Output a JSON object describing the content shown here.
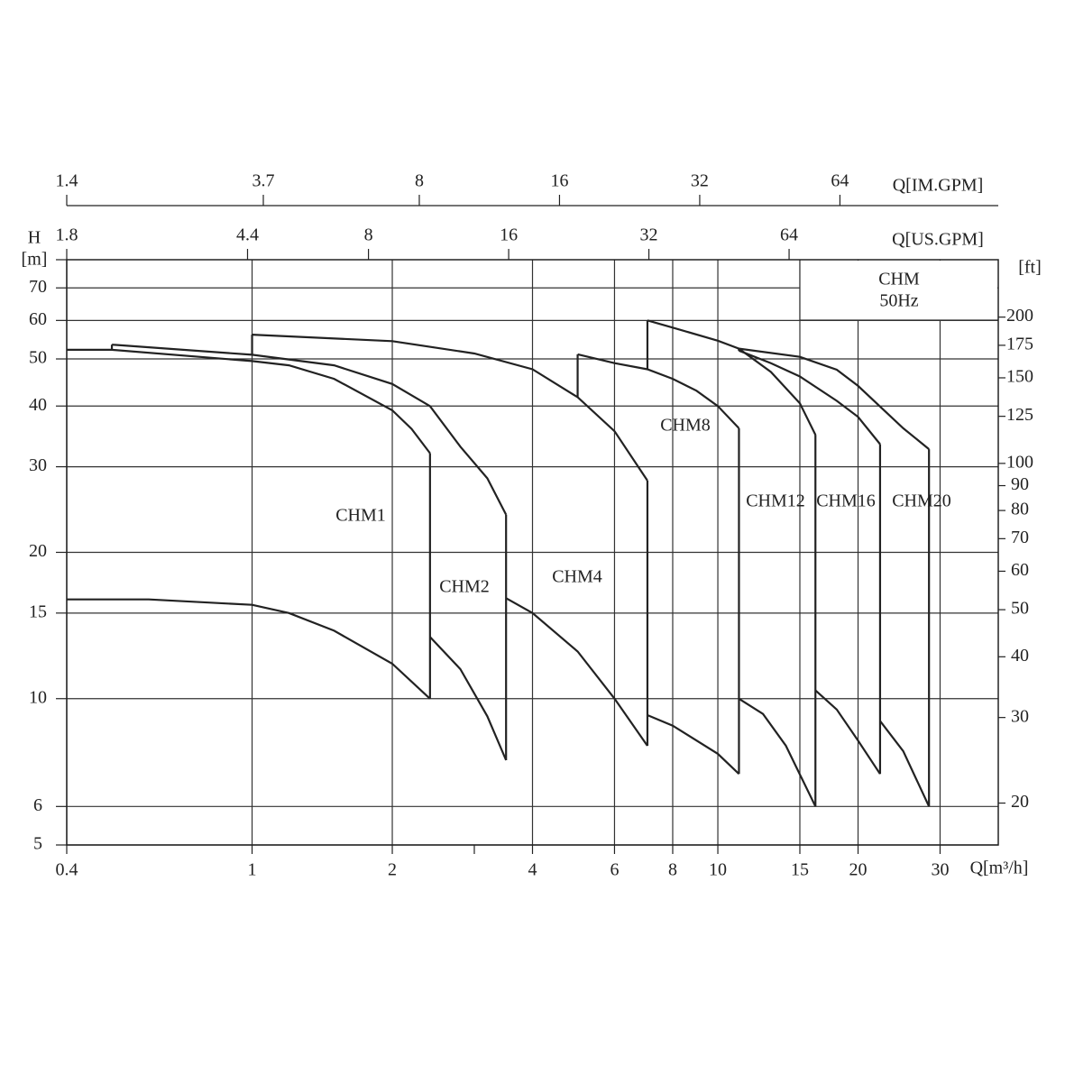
{
  "chart_data": {
    "type": "line",
    "log_scale": {
      "x": true,
      "y": true
    },
    "xlabel": "Q[m³/h]",
    "ylabel": "H",
    "yunit": "[m]",
    "y2unit": "[ft]",
    "annotation": [
      "CHM",
      "50Hz"
    ],
    "xlim": [
      0.4,
      40
    ],
    "xticks": [
      0.4,
      1,
      2,
      4,
      6,
      8,
      10,
      15,
      20,
      30
    ],
    "xminorticks": [
      3
    ],
    "ylim": [
      5,
      80
    ],
    "yticks": [
      5,
      6,
      10,
      15,
      20,
      30,
      40,
      50,
      60,
      70
    ],
    "y2lim": [
      16.4,
      262.5
    ],
    "y2ticks": [
      20,
      30,
      40,
      50,
      60,
      70,
      80,
      90,
      100,
      125,
      150,
      175,
      200
    ],
    "top_axes": [
      {
        "label": "Q[IM.GPM]",
        "lim": [
          1.4,
          140
        ],
        "ticks": [
          1.4,
          3.7,
          8,
          16,
          32,
          64
        ]
      },
      {
        "label": "Q[US.GPM]",
        "lim": [
          1.8,
          180
        ],
        "ticks": [
          1.8,
          4.4,
          8,
          16,
          32,
          64
        ]
      }
    ],
    "grid": true,
    "color": "#222222",
    "series": [
      {
        "name": "CHM1",
        "curves": [
          {
            "x": [
              0.4,
              0.5,
              1,
              1.2,
              1.5,
              2,
              2.2,
              2.41
            ],
            "values": [
              52.2,
              52.2,
              49.5,
              48.5,
              45.5,
              39.2,
              35.9,
              32
            ]
          },
          {
            "x": [
              0.4,
              0.6,
              1,
              1.2,
              1.5,
              2,
              2.41
            ],
            "values": [
              16,
              16,
              15.6,
              15,
              13.8,
              11.8,
              10
            ]
          }
        ]
      },
      {
        "name": "CHM2",
        "curves": [
          {
            "x": [
              0.5,
              1,
              1.5,
              2,
              2.41,
              2.8,
              3.2,
              3.51
            ],
            "values": [
              53.5,
              51,
              48.5,
              44.4,
              40,
              33,
              28.4,
              23.9
            ]
          },
          {
            "x": [
              2.41,
              2.8,
              3.2,
              3.51
            ],
            "values": [
              13.4,
              11.5,
              9.2,
              7.47
            ]
          }
        ]
      },
      {
        "name": "CHM4",
        "curves": [
          {
            "x": [
              1,
              2,
              3,
              4,
              5,
              6,
              7.06
            ],
            "values": [
              56.1,
              54.4,
              51.3,
              47.6,
              41.7,
              35.5,
              28.1
            ]
          },
          {
            "x": [
              3.51,
              4,
              5,
              6,
              7.06
            ],
            "values": [
              16.1,
              15,
              12.5,
              10,
              8
            ]
          }
        ]
      },
      {
        "name": "CHM8",
        "curves": [
          {
            "x": [
              5,
              6,
              7.06,
              8,
              9,
              10,
              11.1
            ],
            "values": [
              51.1,
              49,
              47.6,
              45.5,
              43,
              40,
              36
            ]
          },
          {
            "x": [
              7.06,
              8,
              10,
              11.1
            ],
            "values": [
              9.25,
              8.8,
              7.7,
              7
            ]
          }
        ]
      },
      {
        "name": "CHM12",
        "curves": [
          {
            "x": [
              7.06,
              8,
              10,
              11.1,
              13,
              15,
              16.2
            ],
            "values": [
              60,
              58,
              54.5,
              52.5,
              47,
              40.5,
              34.9
            ]
          },
          {
            "x": [
              11.1,
              12.5,
              14,
              16.2
            ],
            "values": [
              10,
              9.3,
              8,
              6
            ]
          }
        ]
      },
      {
        "name": "CHM16",
        "curves": [
          {
            "x": [
              11.1,
              13,
              15,
              18,
              20,
              22.3
            ],
            "values": [
              52,
              49,
              46,
              41,
              38,
              33.4
            ]
          },
          {
            "x": [
              16.2,
              18,
              20,
              22.3
            ],
            "values": [
              10.4,
              9.5,
              8.2,
              7
            ]
          }
        ]
      },
      {
        "name": "CHM20",
        "curves": [
          {
            "x": [
              11.1,
              15,
              18,
              20,
              25,
              28.4
            ],
            "values": [
              52.5,
              50.5,
              47.5,
              44,
              36,
              32.6
            ]
          },
          {
            "x": [
              22.3,
              25,
              28.4
            ],
            "values": [
              9,
              7.8,
              6
            ]
          }
        ]
      }
    ]
  }
}
